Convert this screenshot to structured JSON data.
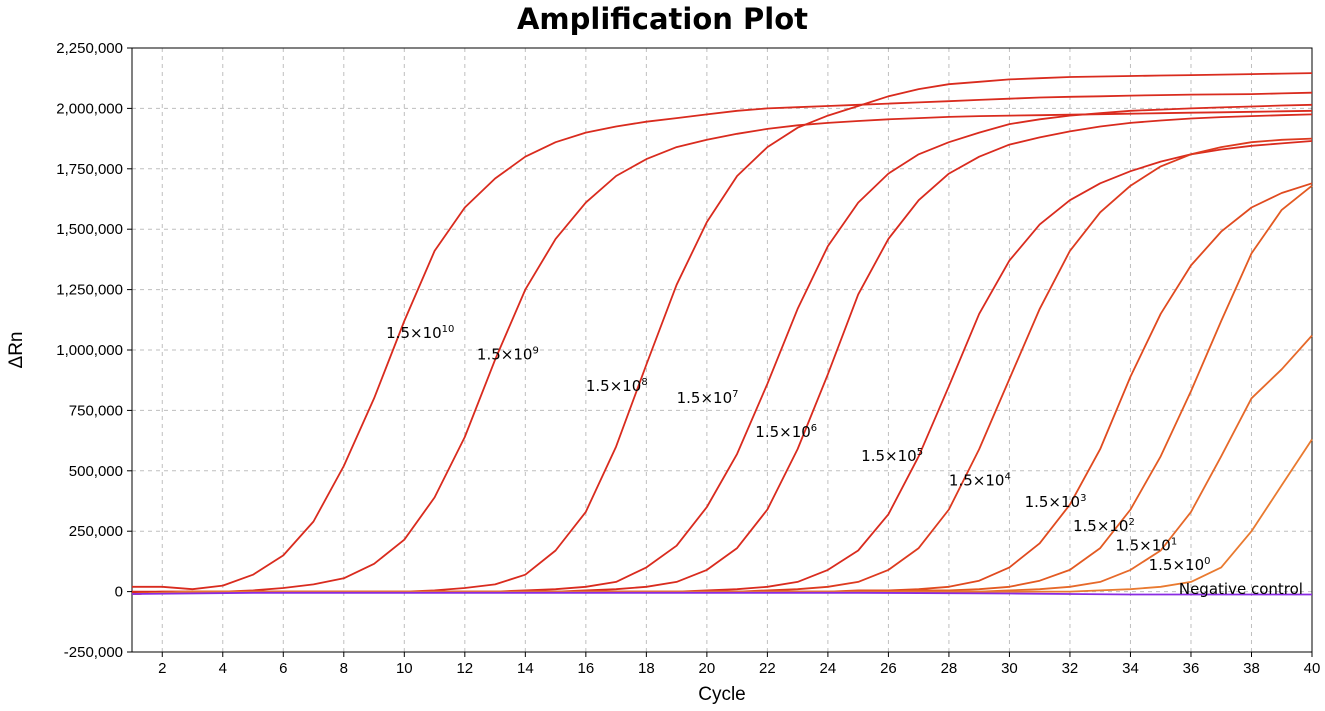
{
  "chart_data": {
    "type": "line",
    "title": "Amplification Plot",
    "xlabel": "Cycle",
    "ylabel": "ΔRn",
    "xlim": [
      1,
      40
    ],
    "ylim": [
      -250000,
      2250000
    ],
    "x_ticks": [
      2,
      4,
      6,
      8,
      10,
      12,
      14,
      16,
      18,
      20,
      22,
      24,
      26,
      28,
      30,
      32,
      34,
      36,
      38,
      40
    ],
    "y_ticks": [
      {
        "value": -250000,
        "label": "-250,000"
      },
      {
        "value": 0,
        "label": "0"
      },
      {
        "value": 250000,
        "label": "250,000"
      },
      {
        "value": 500000,
        "label": "500,000"
      },
      {
        "value": 750000,
        "label": "750,000"
      },
      {
        "value": 1000000,
        "label": "1,000,000"
      },
      {
        "value": 1250000,
        "label": "1,250,000"
      },
      {
        "value": 1500000,
        "label": "1,500,000"
      },
      {
        "value": 1750000,
        "label": "1,750,000"
      },
      {
        "value": 2000000,
        "label": "2,000,000"
      },
      {
        "value": 2250000,
        "label": "2,250,000"
      }
    ],
    "grid": true,
    "series": [
      {
        "name": "1.5×10^10",
        "label_base": "1.5×10",
        "label_exp": "10",
        "label_at": [
          9.4,
          1050000
        ],
        "color": "#d92b1e",
        "x": [
          1,
          2,
          3,
          4,
          5,
          6,
          7,
          8,
          9,
          10,
          11,
          12,
          13,
          14,
          15,
          16,
          17,
          18,
          19,
          20,
          21,
          22,
          23,
          24,
          25,
          26,
          27,
          28,
          29,
          30,
          31,
          32,
          33,
          34,
          35,
          36,
          37,
          38,
          39,
          40
        ],
        "y": [
          20000,
          20000,
          10000,
          25000,
          70000,
          150000,
          290000,
          520000,
          800000,
          1120000,
          1410000,
          1590000,
          1710000,
          1800000,
          1860000,
          1900000,
          1925000,
          1945000,
          1960000,
          1975000,
          1990000,
          2000000,
          2005000,
          2010000,
          2015000,
          2020000,
          2025000,
          2030000,
          2035000,
          2040000,
          2045000,
          2048000,
          2050000,
          2053000,
          2055000,
          2057000,
          2058000,
          2059000,
          2062000,
          2065000
        ]
      },
      {
        "name": "1.5×10^9",
        "label_base": "1.5×10",
        "label_exp": "9",
        "label_at": [
          12.4,
          960000
        ],
        "color": "#d92b1e",
        "x": [
          1,
          2,
          3,
          4,
          5,
          6,
          7,
          8,
          9,
          10,
          11,
          12,
          13,
          14,
          15,
          16,
          17,
          18,
          19,
          20,
          21,
          22,
          23,
          24,
          25,
          26,
          27,
          28,
          29,
          30,
          31,
          32,
          33,
          34,
          35,
          36,
          37,
          38,
          39,
          40
        ],
        "y": [
          0,
          0,
          0,
          0,
          5000,
          15000,
          30000,
          55000,
          115000,
          215000,
          390000,
          640000,
          960000,
          1250000,
          1460000,
          1610000,
          1720000,
          1790000,
          1840000,
          1870000,
          1895000,
          1915000,
          1930000,
          1940000,
          1948000,
          1955000,
          1960000,
          1965000,
          1968000,
          1970000,
          1972000,
          1974000,
          1976000,
          1978000,
          1980000,
          1982000,
          1984000,
          1986000,
          1988000,
          1990000
        ]
      },
      {
        "name": "1.5×10^8",
        "label_base": "1.5×10",
        "label_exp": "8",
        "label_at": [
          16.0,
          830000
        ],
        "color": "#d92b1e",
        "x": [
          1,
          2,
          3,
          4,
          5,
          6,
          7,
          8,
          9,
          10,
          11,
          12,
          13,
          14,
          15,
          16,
          17,
          18,
          19,
          20,
          21,
          22,
          23,
          24,
          25,
          26,
          27,
          28,
          29,
          30,
          31,
          32,
          33,
          34,
          35,
          36,
          37,
          38,
          39,
          40
        ],
        "y": [
          -5000,
          0,
          0,
          0,
          0,
          0,
          0,
          0,
          0,
          0,
          5000,
          15000,
          30000,
          70000,
          170000,
          330000,
          600000,
          940000,
          1270000,
          1530000,
          1720000,
          1840000,
          1920000,
          1970000,
          2010000,
          2050000,
          2080000,
          2100000,
          2110000,
          2120000,
          2125000,
          2130000,
          2132000,
          2134000,
          2136000,
          2138000,
          2140000,
          2142000,
          2144000,
          2146000
        ]
      },
      {
        "name": "1.5×10^7",
        "label_base": "1.5×10",
        "label_exp": "7",
        "label_at": [
          19.0,
          780000
        ],
        "color": "#d92b1e",
        "x": [
          1,
          2,
          3,
          4,
          5,
          6,
          7,
          8,
          9,
          10,
          11,
          12,
          13,
          14,
          15,
          16,
          17,
          18,
          19,
          20,
          21,
          22,
          23,
          24,
          25,
          26,
          27,
          28,
          29,
          30,
          31,
          32,
          33,
          34,
          35,
          36,
          37,
          38,
          39,
          40
        ],
        "y": [
          -10000,
          -5000,
          0,
          0,
          0,
          0,
          0,
          0,
          0,
          0,
          0,
          0,
          0,
          5000,
          10000,
          20000,
          40000,
          100000,
          190000,
          350000,
          570000,
          860000,
          1170000,
          1430000,
          1610000,
          1730000,
          1810000,
          1860000,
          1900000,
          1935000,
          1955000,
          1970000,
          1980000,
          1990000,
          1995000,
          2000000,
          2004000,
          2008000,
          2012000,
          2015000
        ]
      },
      {
        "name": "1.5×10^6",
        "label_base": "1.5×10",
        "label_exp": "6",
        "label_at": [
          21.6,
          640000
        ],
        "color": "#d92b1e",
        "x": [
          1,
          2,
          3,
          4,
          5,
          6,
          7,
          8,
          9,
          10,
          11,
          12,
          13,
          14,
          15,
          16,
          17,
          18,
          19,
          20,
          21,
          22,
          23,
          24,
          25,
          26,
          27,
          28,
          29,
          30,
          31,
          32,
          33,
          34,
          35,
          36,
          37,
          38,
          39,
          40
        ],
        "y": [
          -10000,
          -5000,
          0,
          0,
          0,
          0,
          0,
          0,
          0,
          0,
          0,
          0,
          0,
          0,
          0,
          5000,
          10000,
          20000,
          40000,
          90000,
          180000,
          340000,
          590000,
          900000,
          1230000,
          1460000,
          1620000,
          1730000,
          1800000,
          1850000,
          1880000,
          1905000,
          1925000,
          1940000,
          1950000,
          1958000,
          1964000,
          1968000,
          1972000,
          1975000
        ]
      },
      {
        "name": "1.5×10^5",
        "label_base": "1.5×10",
        "label_exp": "5",
        "label_at": [
          25.1,
          540000
        ],
        "color": "#d92b1e",
        "x": [
          1,
          2,
          3,
          4,
          5,
          6,
          7,
          8,
          9,
          10,
          11,
          12,
          13,
          14,
          15,
          16,
          17,
          18,
          19,
          20,
          21,
          22,
          23,
          24,
          25,
          26,
          27,
          28,
          29,
          30,
          31,
          32,
          33,
          34,
          35,
          36,
          37,
          38,
          39,
          40
        ],
        "y": [
          -10000,
          -5000,
          0,
          0,
          0,
          0,
          0,
          0,
          0,
          0,
          0,
          0,
          0,
          0,
          0,
          0,
          0,
          0,
          0,
          5000,
          10000,
          20000,
          40000,
          90000,
          170000,
          320000,
          560000,
          850000,
          1150000,
          1370000,
          1520000,
          1620000,
          1690000,
          1740000,
          1780000,
          1810000,
          1830000,
          1845000,
          1855000,
          1865000
        ]
      },
      {
        "name": "1.5×10^4",
        "label_base": "1.5×10",
        "label_exp": "4",
        "label_at": [
          28.0,
          440000
        ],
        "color": "#dd3a1f",
        "x": [
          1,
          2,
          3,
          4,
          5,
          6,
          7,
          8,
          9,
          10,
          11,
          12,
          13,
          14,
          15,
          16,
          17,
          18,
          19,
          20,
          21,
          22,
          23,
          24,
          25,
          26,
          27,
          28,
          29,
          30,
          31,
          32,
          33,
          34,
          35,
          36,
          37,
          38,
          39,
          40
        ],
        "y": [
          -10000,
          -5000,
          0,
          0,
          0,
          0,
          0,
          0,
          0,
          0,
          0,
          0,
          0,
          0,
          0,
          0,
          0,
          0,
          0,
          0,
          0,
          5000,
          10000,
          20000,
          40000,
          90000,
          180000,
          340000,
          590000,
          880000,
          1170000,
          1410000,
          1570000,
          1680000,
          1760000,
          1810000,
          1840000,
          1860000,
          1870000,
          1875000
        ]
      },
      {
        "name": "1.5×10^3",
        "label_base": "1.5×10",
        "label_exp": "3",
        "label_at": [
          30.5,
          350000
        ],
        "color": "#e04a1f",
        "x": [
          1,
          2,
          3,
          4,
          5,
          6,
          7,
          8,
          9,
          10,
          11,
          12,
          13,
          14,
          15,
          16,
          17,
          18,
          19,
          20,
          21,
          22,
          23,
          24,
          25,
          26,
          27,
          28,
          29,
          30,
          31,
          32,
          33,
          34,
          35,
          36,
          37,
          38,
          39,
          40
        ],
        "y": [
          -10000,
          -5000,
          0,
          0,
          0,
          0,
          0,
          0,
          0,
          0,
          0,
          0,
          0,
          0,
          0,
          0,
          0,
          0,
          0,
          0,
          0,
          0,
          0,
          0,
          5000,
          5000,
          10000,
          20000,
          45000,
          100000,
          200000,
          360000,
          590000,
          890000,
          1150000,
          1350000,
          1490000,
          1590000,
          1650000,
          1690000
        ]
      },
      {
        "name": "1.5×10^2",
        "label_base": "1.5×10",
        "label_exp": "2",
        "label_at": [
          32.1,
          250000
        ],
        "color": "#e35a22",
        "x": [
          1,
          2,
          3,
          4,
          5,
          6,
          7,
          8,
          9,
          10,
          11,
          12,
          13,
          14,
          15,
          16,
          17,
          18,
          19,
          20,
          21,
          22,
          23,
          24,
          25,
          26,
          27,
          28,
          29,
          30,
          31,
          32,
          33,
          34,
          35,
          36,
          37,
          38,
          39,
          40
        ],
        "y": [
          -10000,
          -5000,
          0,
          0,
          0,
          0,
          0,
          0,
          0,
          0,
          0,
          0,
          0,
          0,
          0,
          0,
          0,
          0,
          0,
          0,
          0,
          0,
          0,
          0,
          0,
          0,
          5000,
          5000,
          10000,
          20000,
          45000,
          90000,
          180000,
          340000,
          560000,
          830000,
          1120000,
          1400000,
          1580000,
          1680000
        ]
      },
      {
        "name": "1.5×10^1",
        "label_base": "1.5×10",
        "label_exp": "1",
        "label_at": [
          33.5,
          170000
        ],
        "color": "#e6692a",
        "x": [
          1,
          2,
          3,
          4,
          5,
          6,
          7,
          8,
          9,
          10,
          11,
          12,
          13,
          14,
          15,
          16,
          17,
          18,
          19,
          20,
          21,
          22,
          23,
          24,
          25,
          26,
          27,
          28,
          29,
          30,
          31,
          32,
          33,
          34,
          35,
          36,
          37,
          38,
          39,
          40
        ],
        "y": [
          -10000,
          -5000,
          0,
          0,
          0,
          0,
          0,
          0,
          0,
          0,
          0,
          0,
          0,
          0,
          0,
          0,
          0,
          0,
          0,
          0,
          0,
          0,
          0,
          0,
          0,
          0,
          0,
          0,
          0,
          5000,
          10000,
          20000,
          40000,
          90000,
          170000,
          330000,
          560000,
          800000,
          920000,
          1060000
        ]
      },
      {
        "name": "1.5×10^0",
        "label_base": "1.5×10",
        "label_exp": "0",
        "label_at": [
          34.6,
          90000
        ],
        "color": "#e97a30",
        "x": [
          1,
          2,
          3,
          4,
          5,
          6,
          7,
          8,
          9,
          10,
          11,
          12,
          13,
          14,
          15,
          16,
          17,
          18,
          19,
          20,
          21,
          22,
          23,
          24,
          25,
          26,
          27,
          28,
          29,
          30,
          31,
          32,
          33,
          34,
          35,
          36,
          37,
          38,
          39,
          40
        ],
        "y": [
          -10000,
          -5000,
          0,
          0,
          0,
          0,
          0,
          0,
          0,
          0,
          0,
          0,
          0,
          0,
          0,
          0,
          0,
          0,
          0,
          0,
          0,
          0,
          0,
          0,
          0,
          0,
          0,
          0,
          0,
          0,
          0,
          0,
          5000,
          10000,
          20000,
          40000,
          100000,
          250000,
          440000,
          630000
        ]
      },
      {
        "name": "Negative control",
        "label_base": "Negative control",
        "label_exp": "",
        "label_at": [
          35.6,
          -10000
        ],
        "color": "#8a2be2",
        "x": [
          1,
          5,
          10,
          15,
          20,
          25,
          30,
          32,
          34,
          36,
          38,
          40
        ],
        "y": [
          -10000,
          -5000,
          -5000,
          -5000,
          -5000,
          -5000,
          -8000,
          -10000,
          -12000,
          -12000,
          -12000,
          -12000
        ]
      }
    ]
  }
}
